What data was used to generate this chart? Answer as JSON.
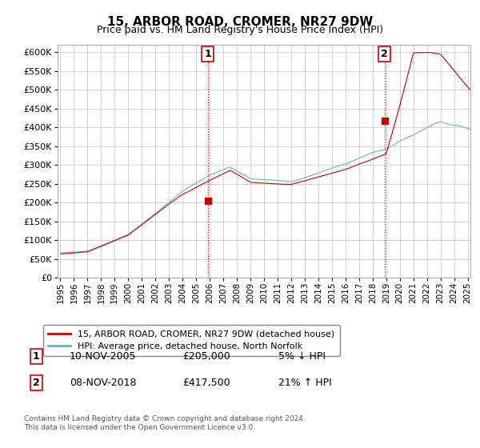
{
  "title": "15, ARBOR ROAD, CROMER, NR27 9DW",
  "subtitle": "Price paid vs. HM Land Registry's House Price Index (HPI)",
  "hpi_label": "HPI: Average price, detached house, North Norfolk",
  "property_label": "15, ARBOR ROAD, CROMER, NR27 9DW (detached house)",
  "sale1_label": "10-NOV-2005",
  "sale1_price": 205000,
  "sale1_pct": "5% ↓ HPI",
  "sale2_label": "08-NOV-2018",
  "sale2_price": 417500,
  "sale2_pct": "21% ↑ HPI",
  "ylim": [
    0,
    620000
  ],
  "yticks": [
    0,
    50000,
    100000,
    150000,
    200000,
    250000,
    300000,
    350000,
    400000,
    450000,
    500000,
    550000,
    600000
  ],
  "hpi_color": "#6baed6",
  "property_color": "#cc0000",
  "sale_marker_color": "#cc0000",
  "grid_color": "#cccccc",
  "background_color": "#ffffff",
  "footnote": "Contains HM Land Registry data © Crown copyright and database right 2024.\nThis data is licensed under the Open Government Licence v3.0.",
  "x_start_year": 1995,
  "x_end_year": 2025,
  "sale1_year": 2005.875,
  "sale2_year": 2018.875
}
